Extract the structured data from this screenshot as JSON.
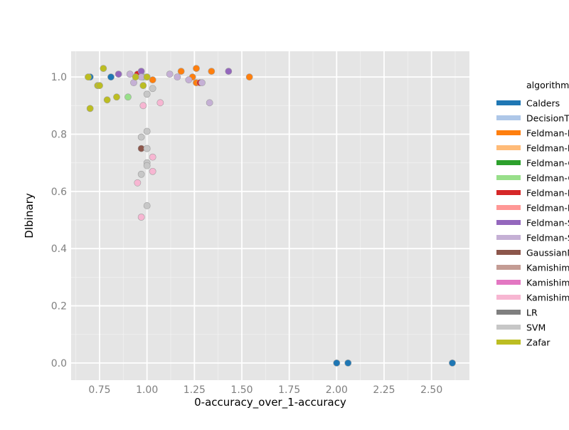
{
  "chart_data": {
    "type": "scatter",
    "title": "",
    "xlabel": "0-accuracy_over_1-accuracy",
    "ylabel": "DIbinary",
    "xlim": [
      0.6,
      2.7
    ],
    "ylim": [
      -0.06,
      1.09
    ],
    "x_ticks": [
      0.75,
      1.0,
      1.25,
      1.5,
      1.75,
      2.0,
      2.25,
      2.5
    ],
    "x_tick_labels": [
      "0.75",
      "1.00",
      "1.25",
      "1.50",
      "1.75",
      "2.00",
      "2.25",
      "2.50"
    ],
    "y_ticks": [
      0.0,
      0.2,
      0.4,
      0.6,
      0.8,
      1.0
    ],
    "y_tick_labels": [
      "0.0",
      "0.2",
      "0.4",
      "0.6",
      "0.8",
      "1.0"
    ],
    "grid": true,
    "legend_position": "right",
    "legend_title": "algorithm",
    "series": [
      {
        "name": "Calders",
        "color": "#1f77b4",
        "points": [
          [
            0.7,
            1.0
          ],
          [
            0.81,
            1.0
          ],
          [
            2.0,
            0.0
          ],
          [
            2.06,
            0.0
          ],
          [
            2.61,
            0.0
          ]
        ]
      },
      {
        "name": "DecisionTree",
        "color": "#aec7e8",
        "points": []
      },
      {
        "name": "Feldman-DecisionTree",
        "color": "#ff7f0e",
        "points": [
          [
            1.03,
            0.99
          ],
          [
            1.18,
            1.02
          ],
          [
            1.24,
            1.0
          ],
          [
            1.26,
            1.03
          ],
          [
            1.26,
            0.98
          ],
          [
            1.34,
            1.02
          ],
          [
            1.54,
            1.0
          ]
        ]
      },
      {
        "name": "Feldman-DecisionTree",
        "color": "#ffbb78",
        "points": []
      },
      {
        "name": "Feldman-GaussianNB",
        "color": "#2ca02c",
        "points": []
      },
      {
        "name": "Feldman-GaussianNB",
        "color": "#98df8a",
        "points": [
          [
            0.9,
            0.93
          ],
          [
            0.98,
            1.0
          ]
        ]
      },
      {
        "name": "Feldman-LR",
        "color": "#d62728",
        "points": [
          [
            0.95,
            1.01
          ],
          [
            1.28,
            0.98
          ]
        ]
      },
      {
        "name": "Feldman-LR",
        "color": "#ff9896",
        "points": []
      },
      {
        "name": "Feldman-SVM",
        "color": "#9467bd",
        "points": [
          [
            0.85,
            1.01
          ],
          [
            0.97,
            1.02
          ],
          [
            1.43,
            1.02
          ]
        ]
      },
      {
        "name": "Feldman-SVM",
        "color": "#c5b0d5",
        "points": [
          [
            0.91,
            1.01
          ],
          [
            0.93,
            0.98
          ],
          [
            0.97,
            1.0
          ],
          [
            1.0,
            1.0
          ],
          [
            1.12,
            1.01
          ],
          [
            1.16,
            1.0
          ],
          [
            1.22,
            0.99
          ],
          [
            1.29,
            0.98
          ],
          [
            1.33,
            0.91
          ]
        ]
      },
      {
        "name": "GaussianNB",
        "color": "#8c564b",
        "points": [
          [
            0.97,
            0.75
          ]
        ]
      },
      {
        "name": "Kamishima",
        "color": "#c49c94",
        "points": []
      },
      {
        "name": "Kamishima",
        "color": "#e377c2",
        "points": []
      },
      {
        "name": "Kamishima",
        "color": "#f7b6d2",
        "points": [
          [
            0.95,
            0.63
          ],
          [
            0.97,
            0.51
          ],
          [
            0.98,
            0.9
          ],
          [
            1.03,
            0.72
          ],
          [
            1.03,
            0.67
          ],
          [
            1.07,
            0.91
          ]
        ]
      },
      {
        "name": "LR",
        "color": "#7f7f7f",
        "points": [
          [
            1.0,
            0.75
          ]
        ]
      },
      {
        "name": "SVM",
        "color": "#c7c7c7",
        "points": [
          [
            0.97,
            0.79
          ],
          [
            0.97,
            0.66
          ],
          [
            1.0,
            0.81
          ],
          [
            1.0,
            0.75
          ],
          [
            1.0,
            0.7
          ],
          [
            1.0,
            0.69
          ],
          [
            1.0,
            0.55
          ],
          [
            1.0,
            0.94
          ],
          [
            1.03,
            0.96
          ]
        ]
      },
      {
        "name": "Zafar",
        "color": "#bcbd22",
        "points": [
          [
            0.69,
            1.0
          ],
          [
            0.7,
            0.89
          ],
          [
            0.74,
            0.97
          ],
          [
            0.75,
            0.97
          ],
          [
            0.77,
            1.03
          ],
          [
            0.79,
            0.92
          ],
          [
            0.84,
            0.93
          ],
          [
            0.94,
            1.0
          ],
          [
            0.98,
            0.97
          ],
          [
            1.0,
            1.0
          ]
        ]
      }
    ]
  }
}
